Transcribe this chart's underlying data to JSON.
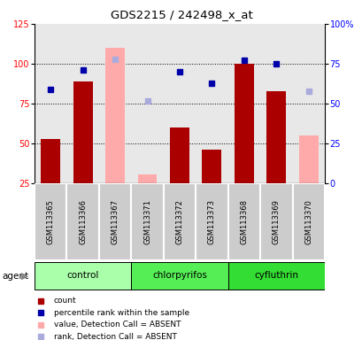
{
  "title": "GDS2215 / 242498_x_at",
  "samples": [
    "GSM113365",
    "GSM113366",
    "GSM113367",
    "GSM113371",
    "GSM113372",
    "GSM113373",
    "GSM113368",
    "GSM113369",
    "GSM113370"
  ],
  "groups": [
    {
      "name": "control",
      "indices": [
        0,
        1,
        2
      ],
      "color": "#aaffaa"
    },
    {
      "name": "chlorpyrifos",
      "indices": [
        3,
        4,
        5
      ],
      "color": "#55ee55"
    },
    {
      "name": "cyfluthrin",
      "indices": [
        6,
        7,
        8
      ],
      "color": "#33dd33"
    }
  ],
  "count_present": [
    53,
    89,
    null,
    null,
    60,
    46,
    100,
    83,
    null
  ],
  "count_absent": [
    null,
    null,
    110,
    31,
    null,
    null,
    null,
    null,
    55
  ],
  "rank_present": [
    59,
    71,
    null,
    null,
    70,
    63,
    77,
    75,
    null
  ],
  "rank_absent": [
    null,
    null,
    78,
    52,
    null,
    null,
    null,
    null,
    58
  ],
  "ylim_left": [
    25,
    125
  ],
  "ylim_right": [
    0,
    100
  ],
  "yticks_left": [
    25,
    50,
    75,
    100,
    125
  ],
  "yticks_right": [
    0,
    25,
    50,
    75,
    100
  ],
  "ytick_labels_right": [
    "0",
    "25",
    "50",
    "75",
    "100%"
  ],
  "bar_bottom": 25,
  "count_color_present": "#aa0000",
  "count_color_absent": "#ffaaaa",
  "rank_color_present": "#0000aa",
  "rank_color_absent": "#aaaadd",
  "plot_bg_color": "#e8e8e8",
  "legend_items": [
    {
      "color": "#aa0000",
      "label": "count"
    },
    {
      "color": "#0000aa",
      "label": "percentile rank within the sample"
    },
    {
      "color": "#ffaaaa",
      "label": "value, Detection Call = ABSENT"
    },
    {
      "color": "#aaaadd",
      "label": "rank, Detection Call = ABSENT"
    }
  ]
}
